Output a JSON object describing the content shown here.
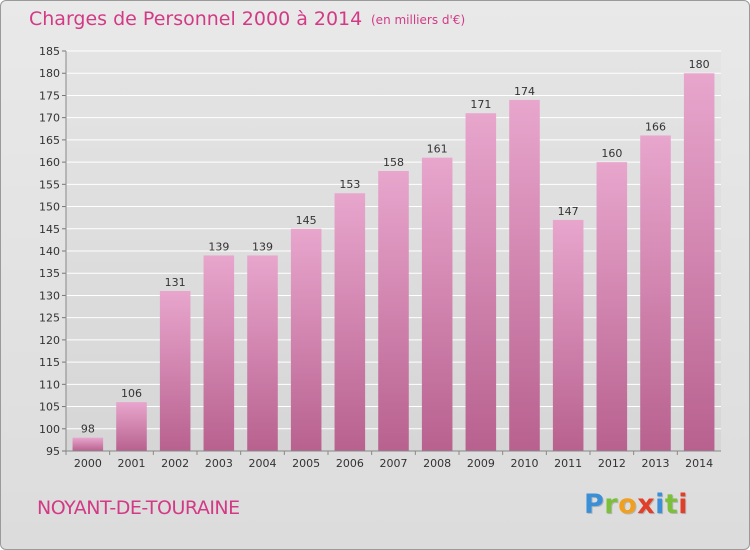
{
  "header": {
    "title": "Charges de Personnel 2000 à 2014",
    "unit": "(en milliers d'€)"
  },
  "footer": {
    "commune": "NOYANT-DE-TOURAINE",
    "logo_letters": [
      "P",
      "r",
      "o",
      "x",
      "i",
      "t",
      "i"
    ],
    "logo_colors": [
      "#3a8fd6",
      "#7bbf3a",
      "#f0a020",
      "#e0402a",
      "#3a8fd6",
      "#7bbf3a",
      "#e0402a"
    ]
  },
  "colors": {
    "accent": "#d33a86",
    "bar_top": "#e8a6cd",
    "bar_bottom": "#b8618f",
    "grid": "#ffffff",
    "axis_text": "#333333"
  },
  "chart_data": {
    "type": "bar",
    "title": "Charges de Personnel 2000 à 2014",
    "xlabel": "",
    "ylabel": "",
    "categories": [
      "2000",
      "2001",
      "2002",
      "2003",
      "2004",
      "2005",
      "2006",
      "2007",
      "2008",
      "2009",
      "2010",
      "2011",
      "2012",
      "2013",
      "2014"
    ],
    "values": [
      98,
      106,
      131,
      139,
      139,
      145,
      153,
      158,
      161,
      171,
      174,
      147,
      160,
      166,
      180
    ],
    "ylim": [
      95,
      185
    ],
    "yticks": [
      95,
      100,
      105,
      110,
      115,
      120,
      125,
      130,
      135,
      140,
      145,
      150,
      155,
      160,
      165,
      170,
      175,
      180,
      185
    ],
    "grid": true,
    "data_labels": true
  }
}
